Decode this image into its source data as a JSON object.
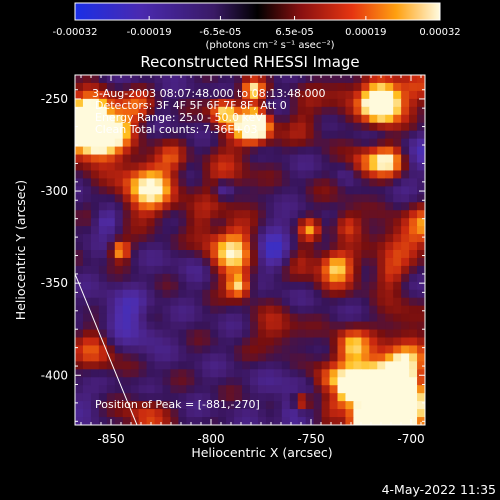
{
  "chart_data": {
    "type": "heatmap",
    "title": "Reconstructed RHESSI Image",
    "xlabel": "Heliocentric X (arcsec)",
    "ylabel": "Heliocentric Y (arcsec)",
    "x_ticks": [
      "-850",
      "-800",
      "-750",
      "-700"
    ],
    "x_tick_values": [
      -850,
      -800,
      -750,
      -700
    ],
    "y_ticks": [
      "-250",
      "-300",
      "-350",
      "-400"
    ],
    "y_tick_values": [
      -250,
      -300,
      -350,
      -400
    ],
    "xlim": [
      -868,
      -693
    ],
    "ylim": [
      -427,
      -237
    ],
    "colorbar": {
      "tick_labels": [
        "-0.00032",
        "-0.00019",
        "-6.5e-05",
        "6.5e-05",
        "0.00019",
        "0.00032"
      ],
      "tick_values": [
        -0.00032,
        -0.00019,
        -6.5e-05,
        6.5e-05,
        0.00019,
        0.00032
      ],
      "range": [
        -0.00032,
        0.00032
      ],
      "units": "(photons cm⁻² s⁻¹ asec⁻²)",
      "colormap": "blue-purple-red-yellow-white"
    },
    "info_lines": [
      "3-Aug-2003 08:07:48.000 to 08:13:48.000",
      "Detectors: 3F 4F 5F 6F 7F 8F, Att 0",
      "Energy Range: 25.0 - 50.0 keV",
      "Clean    Total counts: 7.36E+03"
    ],
    "peak_label": "Position of Peak = [-881,-270]",
    "peak_position": [
      -881,
      -270
    ],
    "limb_line": [
      [
        -868,
        -345
      ],
      [
        -837,
        -427
      ]
    ]
  },
  "footer": {
    "date": "4-May-2022 11:35"
  }
}
